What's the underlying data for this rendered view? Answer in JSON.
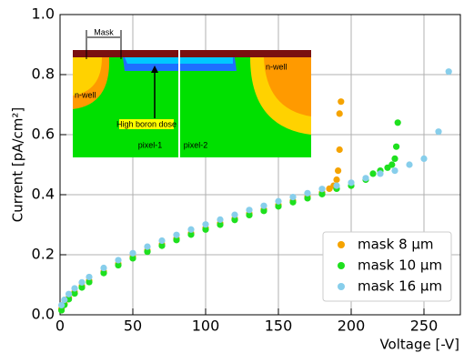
{
  "chart_data": {
    "type": "scatter",
    "x_label": "Voltage [-V]",
    "y_label": "Current [pA/cm²]",
    "xlim": [
      0,
      275
    ],
    "ylim": [
      0,
      1
    ],
    "xticks": [
      0,
      50,
      100,
      150,
      200,
      250
    ],
    "yticks": [
      {
        "value": 0,
        "label": "0.0"
      },
      0.2,
      0.4,
      0.6,
      0.8,
      {
        "value": 1,
        "label": "1.0"
      }
    ],
    "grid": true,
    "legend": "lower right",
    "annotations": [
      "Mask",
      "n-well",
      "n-well",
      "High boron dose",
      "pixel-1",
      "pixel-2"
    ],
    "series": [
      {
        "name": "mask 8 μm",
        "color": "#f5a300",
        "x": [
          1,
          3,
          6,
          10,
          15,
          20,
          30,
          40,
          50,
          60,
          70,
          80,
          90,
          100,
          110,
          120,
          130,
          140,
          150,
          160,
          170,
          180,
          185,
          188,
          190,
          191,
          192,
          192,
          193
        ],
        "values": [
          0.02,
          0.038,
          0.057,
          0.076,
          0.096,
          0.114,
          0.144,
          0.17,
          0.193,
          0.215,
          0.235,
          0.254,
          0.272,
          0.289,
          0.305,
          0.321,
          0.337,
          0.351,
          0.366,
          0.38,
          0.393,
          0.407,
          0.42,
          0.43,
          0.45,
          0.48,
          0.55,
          0.67,
          0.71
        ]
      },
      {
        "name": "mask 10 μm",
        "color": "#1ee01e",
        "x": [
          1,
          3,
          6,
          10,
          15,
          20,
          30,
          40,
          50,
          60,
          70,
          80,
          90,
          100,
          110,
          120,
          130,
          140,
          150,
          160,
          170,
          180,
          190,
          200,
          210,
          215,
          220,
          225,
          228,
          230,
          231,
          232
        ],
        "values": [
          0.015,
          0.033,
          0.052,
          0.071,
          0.091,
          0.109,
          0.139,
          0.165,
          0.188,
          0.21,
          0.23,
          0.249,
          0.267,
          0.284,
          0.3,
          0.316,
          0.332,
          0.346,
          0.361,
          0.375,
          0.388,
          0.402,
          0.42,
          0.43,
          0.45,
          0.47,
          0.48,
          0.49,
          0.5,
          0.52,
          0.56,
          0.64
        ]
      },
      {
        "name": "mask 16 μm",
        "color": "#87ceeb",
        "x": [
          1,
          3,
          6,
          10,
          15,
          20,
          30,
          40,
          50,
          60,
          70,
          80,
          90,
          100,
          110,
          120,
          130,
          140,
          150,
          160,
          170,
          180,
          190,
          200,
          210,
          220,
          230,
          240,
          250,
          260,
          267
        ],
        "values": [
          0.032,
          0.05,
          0.069,
          0.088,
          0.108,
          0.126,
          0.156,
          0.182,
          0.205,
          0.227,
          0.247,
          0.266,
          0.284,
          0.301,
          0.317,
          0.333,
          0.349,
          0.363,
          0.378,
          0.392,
          0.405,
          0.419,
          0.43,
          0.44,
          0.455,
          0.47,
          0.48,
          0.5,
          0.52,
          0.61,
          0.81
        ]
      }
    ]
  }
}
